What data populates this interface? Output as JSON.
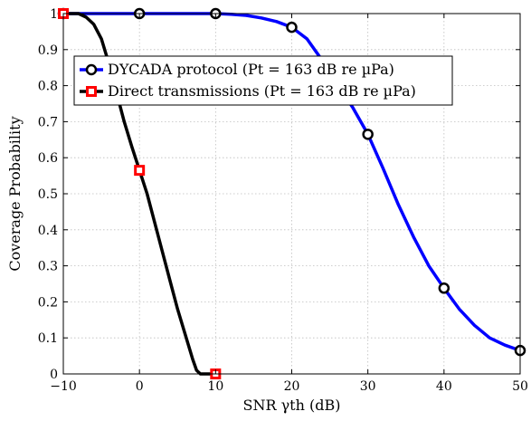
{
  "chart_data": {
    "type": "line",
    "title": "",
    "xlabel": "SNR γth (dB)",
    "ylabel": "Coverage Probability",
    "xlim": [
      -10,
      50
    ],
    "ylim": [
      0,
      1
    ],
    "xticks": [
      -10,
      0,
      10,
      20,
      30,
      40,
      50
    ],
    "yticks": [
      0,
      0.1,
      0.2,
      0.3,
      0.4,
      0.5,
      0.6,
      0.7,
      0.8,
      0.9,
      1
    ],
    "xtick_labels": [
      "−10",
      "0",
      "10",
      "20",
      "30",
      "40",
      "50"
    ],
    "ytick_labels": [
      "0",
      "0.1",
      "0.2",
      "0.3",
      "0.4",
      "0.5",
      "0.6",
      "0.7",
      "0.8",
      "0.9",
      "1"
    ],
    "grid": true,
    "legend_position": "top-right",
    "series": [
      {
        "name": "DYCADA protocol (Pt = 163 dB re µPa)",
        "color": "#0000ff",
        "marker": "circle",
        "marker_color": "#000000",
        "x": [
          -10,
          -5,
          0,
          5,
          10,
          12,
          14,
          16,
          18,
          20,
          22,
          24,
          26,
          28,
          30,
          32,
          34,
          36,
          38,
          40,
          42,
          44,
          46,
          48,
          50
        ],
        "y": [
          1,
          1,
          1,
          1,
          1,
          0.998,
          0.995,
          0.988,
          0.978,
          0.962,
          0.93,
          0.87,
          0.8,
          0.74,
          0.665,
          0.57,
          0.47,
          0.38,
          0.3,
          0.238,
          0.18,
          0.135,
          0.1,
          0.08,
          0.065
        ],
        "marker_points": {
          "x": [
            -10,
            0,
            10,
            20,
            30,
            40,
            50
          ],
          "y": [
            1,
            1,
            1,
            0.962,
            0.665,
            0.238,
            0.065
          ]
        }
      },
      {
        "name": "Direct transmissions (Pt = 163 dB re µPa)",
        "color": "#000000",
        "marker": "square",
        "marker_color": "#ff0000",
        "x": [
          -10,
          -8,
          -7,
          -6,
          -5,
          -4,
          -3,
          -2,
          -1,
          0,
          1,
          2,
          3,
          4,
          5,
          6,
          7,
          7.5,
          8,
          10
        ],
        "y": [
          1,
          1,
          0.99,
          0.97,
          0.93,
          0.86,
          0.78,
          0.7,
          0.63,
          0.565,
          0.5,
          0.42,
          0.34,
          0.26,
          0.18,
          0.11,
          0.04,
          0.01,
          0,
          0
        ],
        "marker_points": {
          "x": [
            -10,
            0,
            10
          ],
          "y": [
            1,
            0.565,
            0
          ]
        }
      }
    ]
  }
}
